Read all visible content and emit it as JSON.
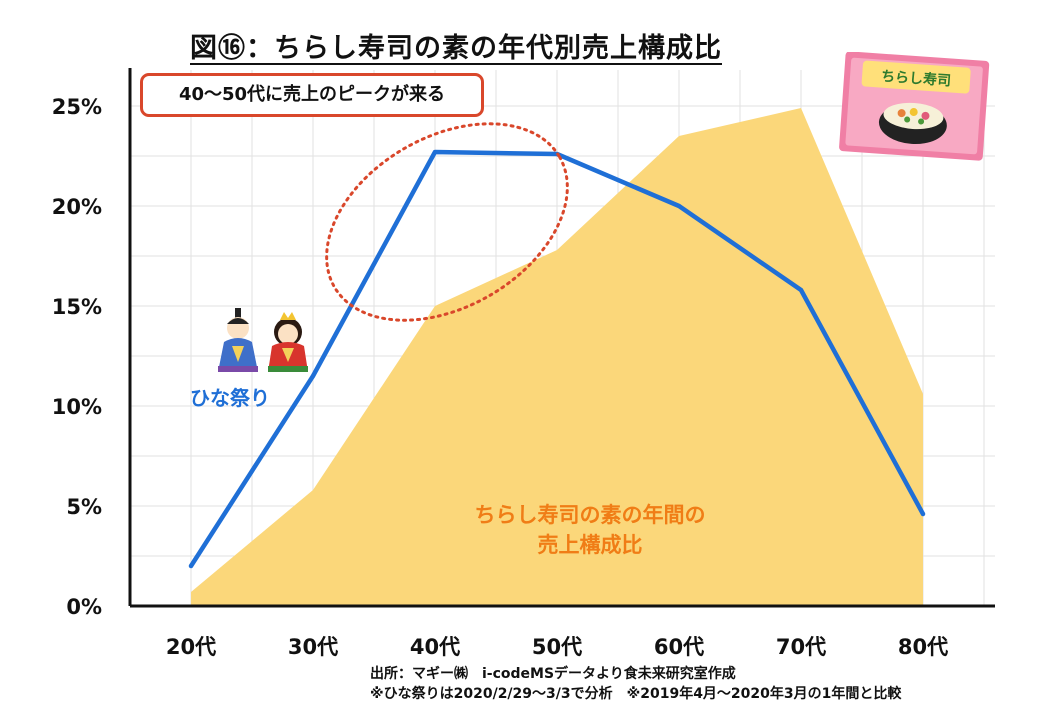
{
  "title": "図⑯：ちらし寿司の素の年代別売上構成比",
  "callout": "40〜50代に売上のピークが来る",
  "series_labels": {
    "hinamatsuri": "ひな祭り",
    "annual_line1": "ちらし寿司の素の年間の",
    "annual_line2": "売上構成比"
  },
  "source": {
    "line1": "出所：マギー㈱　i-codeMSデータより食未来研究室作成",
    "line2": "※ひな祭りは2020/2/29〜3/3で分析　※2019年4月〜2020年3月の1年間と比較"
  },
  "icons": {
    "package_label": "ちらし寿司"
  },
  "colors": {
    "line": "#1f6fd6",
    "area": "#fbd77a",
    "callout_border": "#d9472b",
    "ellipse": "#d9472b",
    "area_label": "#f07d16"
  },
  "chart_data": {
    "type": "line",
    "categories": [
      "20代",
      "30代",
      "40代",
      "50代",
      "60代",
      "70代",
      "80代"
    ],
    "ylim": [
      0,
      25
    ],
    "yticks": [
      "0%",
      "5%",
      "10%",
      "15%",
      "20%",
      "25%"
    ],
    "grid": true,
    "series": [
      {
        "name": "ひな祭り",
        "kind": "line",
        "values": [
          2.0,
          11.5,
          22.7,
          22.6,
          20.0,
          15.8,
          4.6
        ]
      },
      {
        "name": "ちらし寿司の素の年間の売上構成比",
        "kind": "area",
        "values": [
          0.7,
          5.8,
          15.0,
          17.8,
          23.5,
          24.9,
          10.6
        ]
      }
    ]
  }
}
